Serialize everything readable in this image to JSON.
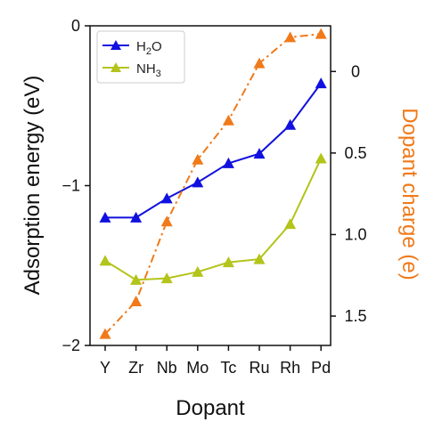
{
  "chart_data": {
    "type": "line",
    "xlabel": "Dopant",
    "categories": [
      "Y",
      "Zr",
      "Nb",
      "Mo",
      "Tc",
      "Ru",
      "Rh",
      "Pd"
    ],
    "left_axis": {
      "label": "Adsorption energy (eV)",
      "ylim": [
        -2,
        0
      ],
      "ticks": [
        "0",
        "−1",
        "−2"
      ],
      "tick_values": [
        0,
        -1,
        -2
      ]
    },
    "right_axis": {
      "label": "Dopant charge (e)",
      "ylim": [
        1.68,
        -0.28
      ],
      "ticks": [
        "0",
        "0.5",
        "1.0",
        "1.5"
      ],
      "tick_values": [
        0,
        0.5,
        1.0,
        1.5
      ],
      "color": "#F07A1A"
    },
    "series": [
      {
        "name_base": "H",
        "name_sub": "2",
        "name_tail": "O",
        "axis": "left",
        "color": "#1010E0",
        "style": "solid",
        "marker": "triangle",
        "values": [
          -1.2,
          -1.2,
          -1.08,
          -0.98,
          -0.86,
          -0.8,
          -0.62,
          -0.36
        ]
      },
      {
        "name_base": "NH",
        "name_sub": "3",
        "name_tail": "",
        "axis": "left",
        "color": "#B3C41A",
        "style": "solid",
        "marker": "triangle",
        "values": [
          -1.47,
          -1.59,
          -1.58,
          -1.54,
          -1.48,
          -1.46,
          -1.24,
          -0.83
        ]
      },
      {
        "name": "",
        "axis": "right",
        "color": "#F07A1A",
        "style": "dashdot",
        "marker": "triangle",
        "values": [
          1.61,
          1.41,
          0.92,
          0.54,
          0.3,
          -0.05,
          -0.21,
          -0.23
        ]
      }
    ],
    "legend_position": "top-left",
    "grid": false
  }
}
